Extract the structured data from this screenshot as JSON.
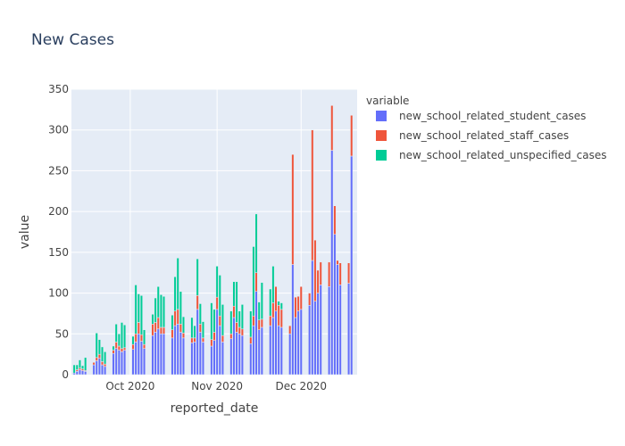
{
  "chart_data": {
    "type": "bar",
    "stacked": true,
    "title": "New Cases",
    "xlabel": "reported_date",
    "ylabel": "value",
    "ylim": [
      0,
      350
    ],
    "yticks": [
      0,
      50,
      100,
      150,
      200,
      250,
      300,
      350
    ],
    "xlim": [
      "2020-09-10",
      "2020-12-21"
    ],
    "xticks": [
      {
        "date": "2020-10-01",
        "label": "Oct 2020"
      },
      {
        "date": "2020-11-01",
        "label": "Nov 2020"
      },
      {
        "date": "2020-12-01",
        "label": "Dec 2020"
      }
    ],
    "legend_title": "variable",
    "legend_position": "right",
    "grid": true,
    "x": [
      "2020-09-11",
      "2020-09-12",
      "2020-09-13",
      "2020-09-14",
      "2020-09-15",
      "2020-09-18",
      "2020-09-19",
      "2020-09-20",
      "2020-09-21",
      "2020-09-22",
      "2020-09-25",
      "2020-09-26",
      "2020-09-27",
      "2020-09-28",
      "2020-09-29",
      "2020-10-02",
      "2020-10-03",
      "2020-10-04",
      "2020-10-05",
      "2020-10-06",
      "2020-10-09",
      "2020-10-10",
      "2020-10-11",
      "2020-10-12",
      "2020-10-13",
      "2020-10-16",
      "2020-10-17",
      "2020-10-18",
      "2020-10-19",
      "2020-10-20",
      "2020-10-23",
      "2020-10-24",
      "2020-10-25",
      "2020-10-26",
      "2020-10-27",
      "2020-10-30",
      "2020-10-31",
      "2020-11-01",
      "2020-11-02",
      "2020-11-03",
      "2020-11-06",
      "2020-11-07",
      "2020-11-08",
      "2020-11-09",
      "2020-11-10",
      "2020-11-13",
      "2020-11-14",
      "2020-11-15",
      "2020-11-16",
      "2020-11-17",
      "2020-11-20",
      "2020-11-21",
      "2020-11-22",
      "2020-11-23",
      "2020-11-24",
      "2020-11-27",
      "2020-11-28",
      "2020-11-29",
      "2020-11-30",
      "2020-12-01",
      "2020-12-04",
      "2020-12-05",
      "2020-12-06",
      "2020-12-07",
      "2020-12-08",
      "2020-12-11",
      "2020-12-12",
      "2020-12-13",
      "2020-12-14",
      "2020-12-15",
      "2020-12-18",
      "2020-12-19"
    ],
    "series": [
      {
        "name": "new_school_related_student_cases",
        "color": "#636efa",
        "values": [
          2,
          4,
          6,
          5,
          4,
          12,
          17,
          20,
          12,
          10,
          26,
          32,
          30,
          28,
          30,
          31,
          40,
          50,
          41,
          32,
          48,
          52,
          56,
          50,
          50,
          45,
          60,
          62,
          52,
          45,
          39,
          40,
          80,
          52,
          40,
          35,
          42,
          80,
          60,
          40,
          44,
          70,
          52,
          50,
          48,
          38,
          60,
          102,
          55,
          58,
          60,
          70,
          78,
          60,
          58,
          50,
          135,
          70,
          78,
          80,
          85,
          140,
          90,
          100,
          110,
          108,
          275,
          172,
          135,
          110,
          112,
          268
        ]
      },
      {
        "name": "new_school_related_staff_cases",
        "color": "#ef553b",
        "values": [
          0,
          2,
          2,
          2,
          1,
          3,
          4,
          5,
          4,
          3,
          4,
          8,
          5,
          4,
          3,
          6,
          10,
          14,
          8,
          5,
          14,
          12,
          14,
          8,
          8,
          10,
          18,
          18,
          10,
          6,
          6,
          5,
          17,
          10,
          5,
          8,
          10,
          15,
          12,
          8,
          6,
          14,
          12,
          8,
          8,
          8,
          12,
          23,
          12,
          10,
          12,
          18,
          30,
          25,
          22,
          10,
          135,
          25,
          18,
          28,
          15,
          160,
          75,
          28,
          28,
          30,
          55,
          35,
          5,
          27,
          25,
          50
        ]
      },
      {
        "name": "new_school_related_unspecified_cases",
        "color": "#00cc96",
        "values": [
          10,
          6,
          10,
          4,
          16,
          0,
          30,
          18,
          18,
          15,
          5,
          22,
          15,
          32,
          28,
          10,
          60,
          35,
          48,
          18,
          12,
          30,
          38,
          40,
          38,
          18,
          42,
          63,
          40,
          20,
          25,
          15,
          45,
          25,
          20,
          45,
          28,
          38,
          50,
          38,
          28,
          30,
          50,
          20,
          30,
          32,
          85,
          72,
          22,
          45,
          33,
          45,
          0,
          5,
          8,
          0,
          0,
          0,
          0,
          0,
          0,
          0,
          0,
          0,
          0,
          0,
          0,
          0,
          0,
          0,
          0,
          0
        ]
      }
    ]
  }
}
